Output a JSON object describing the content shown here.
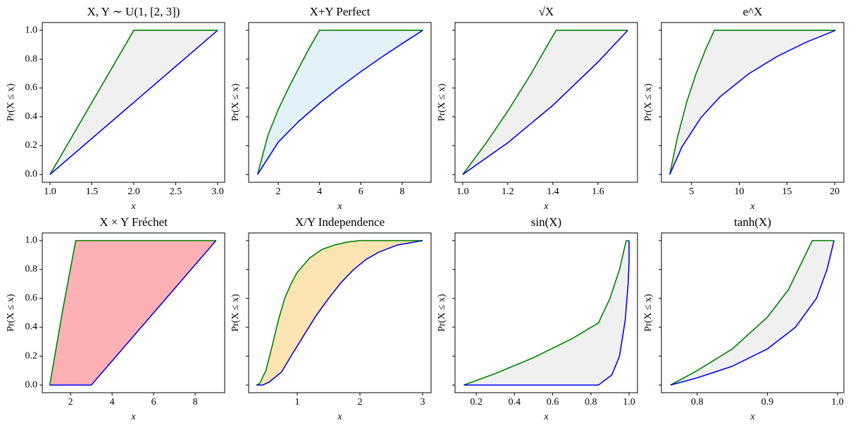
{
  "chart_data": [
    {
      "type": "line",
      "title": "X, Y ∼ U(1, [2, 3])",
      "xlabel": "x",
      "ylabel": "Pr(X ≤ x)",
      "xlim": [
        0.908,
        3.084
      ],
      "ylim": [
        -0.054,
        1.054
      ],
      "xticks": [
        {
          "value": 1,
          "label": "1.0"
        },
        1.5,
        {
          "value": 2,
          "label": "2.0"
        },
        2.5,
        {
          "value": 3,
          "label": "3.0"
        }
      ],
      "yticks": [
        {
          "value": 0,
          "label": "0.0"
        },
        0.2,
        0.4,
        0.6,
        0.8,
        {
          "value": 1,
          "label": "1.0"
        }
      ],
      "ytick_labels": true,
      "fill_between": true,
      "fill_color": "#f0f0f0",
      "series": [
        {
          "color": "#008000",
          "x": [
            1,
            2,
            3
          ],
          "values": [
            0,
            1,
            1
          ]
        },
        {
          "color": "#0000ff",
          "x": [
            1,
            3
          ],
          "values": [
            0,
            1
          ]
        }
      ]
    },
    {
      "type": "line",
      "title": "X+Y Perfect",
      "xlabel": "x",
      "ylabel": "Pr(X ≤ x)",
      "xlim": [
        0.57,
        9.4
      ],
      "ylim": [
        -0.054,
        1.054
      ],
      "xticks": [
        2,
        4,
        6,
        8
      ],
      "yticks": [
        {
          "value": 0,
          "label": "0.0"
        },
        0.2,
        0.4,
        0.6,
        0.8,
        {
          "value": 1,
          "label": "1.0"
        }
      ],
      "ytick_labels": false,
      "fill_between": true,
      "fill_color": "#e3f1f8",
      "series": [
        {
          "color": "#008000",
          "x": [
            1,
            1.5,
            2,
            2.5,
            3,
            3.5,
            4,
            9
          ],
          "values": [
            0,
            0.27,
            0.45,
            0.6,
            0.74,
            0.875,
            1,
            1
          ]
        },
        {
          "color": "#0000ff",
          "x": [
            1,
            2,
            3,
            4,
            5,
            6,
            7,
            8,
            9
          ],
          "values": [
            0,
            0.224,
            0.369,
            0.494,
            0.607,
            0.713,
            0.813,
            0.908,
            1
          ]
        }
      ]
    },
    {
      "type": "line",
      "title": "√X",
      "xlabel": "x",
      "ylabel": "Pr(X ≤ x)",
      "xlim": [
        0.966,
        1.775
      ],
      "ylim": [
        -0.054,
        1.054
      ],
      "xticks": [
        {
          "value": 1,
          "label": "1.0"
        },
        1.2,
        1.4,
        1.6
      ],
      "yticks": [
        {
          "value": 0,
          "label": "0.0"
        },
        0.2,
        0.4,
        0.6,
        0.8,
        {
          "value": 1,
          "label": "1.0"
        }
      ],
      "ytick_labels": false,
      "fill_between": true,
      "fill_color": "#f0f0f0",
      "series": [
        {
          "color": "#008000",
          "x": [
            1,
            1.1,
            1.2,
            1.3,
            1.414,
            1.732
          ],
          "values": [
            0,
            0.21,
            0.44,
            0.69,
            1,
            1
          ]
        },
        {
          "color": "#0000ff",
          "x": [
            1,
            1.2,
            1.4,
            1.6,
            1.732
          ],
          "values": [
            0,
            0.22,
            0.48,
            0.78,
            1
          ]
        }
      ]
    },
    {
      "type": "line",
      "title": "e^X",
      "xlabel": "x",
      "ylabel": "Pr(X ≤ x)",
      "xlim": [
        1.84,
        20.96
      ],
      "ylim": [
        -0.054,
        1.054
      ],
      "xticks": [
        5,
        10,
        15,
        20
      ],
      "yticks": [
        {
          "value": 0,
          "label": "0.0"
        },
        0.2,
        0.4,
        0.6,
        0.8,
        {
          "value": 1,
          "label": "1.0"
        }
      ],
      "ytick_labels": false,
      "fill_between": true,
      "fill_color": "#f0f0f0",
      "series": [
        {
          "color": "#008000",
          "x": [
            2.718,
            3.5,
            4.5,
            5.5,
            6.5,
            7.389,
            20.09
          ],
          "values": [
            0,
            0.253,
            0.504,
            0.705,
            0.872,
            1,
            1
          ]
        },
        {
          "color": "#0000ff",
          "x": [
            2.718,
            4,
            6,
            8,
            11,
            14,
            17,
            20.09
          ],
          "values": [
            0,
            0.193,
            0.396,
            0.54,
            0.699,
            0.82,
            0.917,
            1
          ]
        }
      ]
    },
    {
      "type": "line",
      "title": "X × Y Fréchet",
      "xlabel": "x",
      "ylabel": "Pr(X ≤ x)",
      "xlim": [
        0.64,
        9.42
      ],
      "ylim": [
        -0.053,
        1.053
      ],
      "xticks": [
        2,
        4,
        6,
        8
      ],
      "yticks": [
        {
          "value": 0,
          "label": "0.0"
        },
        0.2,
        0.4,
        0.6,
        0.8,
        {
          "value": 1,
          "label": "1.0"
        }
      ],
      "ytick_labels": true,
      "fill_between": true,
      "fill_color": "#ffb0b5",
      "series": [
        {
          "color": "#008000",
          "x": [
            1,
            1.6,
            2.25,
            9
          ],
          "values": [
            0,
            0.5,
            1,
            1
          ]
        },
        {
          "color": "#0000ff",
          "x": [
            1,
            3,
            9
          ],
          "values": [
            0,
            0,
            1
          ]
        }
      ]
    },
    {
      "type": "line",
      "title": "X/Y Independence",
      "xlabel": "x",
      "ylabel": "Pr(X ≤ x)",
      "xlim": [
        0.225,
        3.135
      ],
      "ylim": [
        -0.053,
        1.053
      ],
      "xticks": [
        1,
        2,
        3
      ],
      "yticks": [
        {
          "value": 0,
          "label": "0.0"
        },
        0.2,
        0.4,
        0.6,
        0.8,
        {
          "value": 1,
          "label": "1.0"
        }
      ],
      "ytick_labels": false,
      "fill_between": true,
      "fill_color": "#ffe4b3",
      "series": [
        {
          "color": "#008000",
          "x": [
            0.35,
            0.4,
            0.5,
            0.6,
            0.7,
            0.8,
            0.9,
            1.0,
            1.2,
            1.4,
            1.6,
            1.8,
            2,
            3
          ],
          "values": [
            0,
            0.01,
            0.1,
            0.27,
            0.45,
            0.6,
            0.7,
            0.78,
            0.88,
            0.94,
            0.97,
            0.99,
            1,
            1
          ]
        },
        {
          "color": "#0000ff",
          "x": [
            0.35,
            0.45,
            0.55,
            0.75,
            0.9,
            1.1,
            1.3,
            1.5,
            1.7,
            1.9,
            2.1,
            2.3,
            2.6,
            3
          ],
          "values": [
            0,
            0,
            0.02,
            0.09,
            0.2,
            0.34,
            0.48,
            0.6,
            0.71,
            0.8,
            0.87,
            0.92,
            0.97,
            1
          ]
        }
      ]
    },
    {
      "type": "line",
      "title": "sin(X)",
      "xlabel": "x",
      "ylabel": "Pr(X ≤ x)",
      "xlim": [
        0.089,
        1.044
      ],
      "ylim": [
        -0.053,
        1.053
      ],
      "xticks": [
        0.2,
        0.4,
        0.6,
        0.8,
        {
          "value": 1,
          "label": "1.0"
        }
      ],
      "yticks": [
        {
          "value": 0,
          "label": "0.0"
        },
        0.2,
        0.4,
        0.6,
        0.8,
        {
          "value": 1,
          "label": "1.0"
        }
      ],
      "ytick_labels": false,
      "fill_between": true,
      "fill_color": "#f0f0f0",
      "series": [
        {
          "color": "#008000",
          "x": [
            0.135,
            0.3,
            0.5,
            0.7,
            0.84,
            0.9,
            0.95,
            0.985,
            1
          ],
          "values": [
            0,
            0.08,
            0.19,
            0.32,
            0.43,
            0.6,
            0.8,
            1,
            1
          ]
        },
        {
          "color": "#0000ff",
          "x": [
            0.135,
            0.84,
            0.91,
            0.95,
            0.98,
            0.995,
            1,
            1
          ],
          "values": [
            0,
            0,
            0.07,
            0.2,
            0.45,
            0.7,
            0.85,
            1
          ]
        }
      ]
    },
    {
      "type": "line",
      "title": "tanh(X)",
      "xlabel": "x",
      "ylabel": "Pr(X ≤ x)",
      "xlim": [
        0.749,
        1.009
      ],
      "ylim": [
        -0.053,
        1.053
      ],
      "xticks": [
        0.8,
        0.9,
        {
          "value": 1,
          "label": "1.0"
        }
      ],
      "yticks": [
        {
          "value": 0,
          "label": "0.0"
        },
        0.2,
        0.4,
        0.6,
        0.8,
        {
          "value": 1,
          "label": "1.0"
        }
      ],
      "ytick_labels": false,
      "fill_between": true,
      "fill_color": "#f0f0f0",
      "series": [
        {
          "color": "#008000",
          "x": [
            0.762,
            0.8,
            0.85,
            0.9,
            0.93,
            0.964,
            0.995
          ],
          "values": [
            0,
            0.1,
            0.25,
            0.47,
            0.66,
            1,
            1
          ]
        },
        {
          "color": "#0000ff",
          "x": [
            0.762,
            0.8,
            0.85,
            0.9,
            0.94,
            0.97,
            0.985,
            0.995
          ],
          "values": [
            0,
            0.05,
            0.13,
            0.25,
            0.4,
            0.6,
            0.8,
            1
          ]
        }
      ]
    }
  ]
}
